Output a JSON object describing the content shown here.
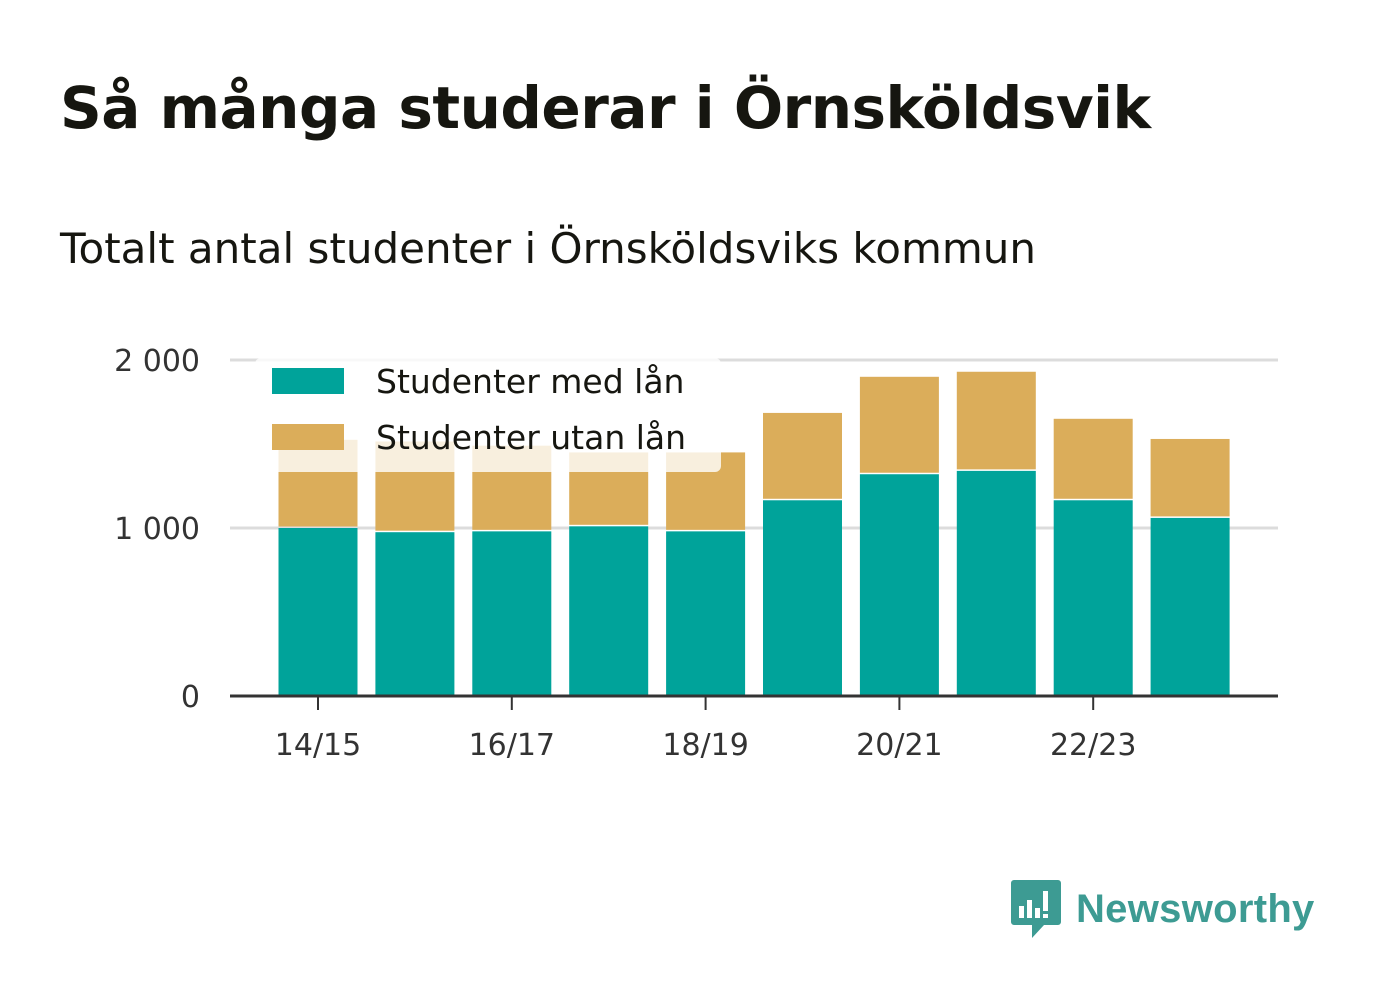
{
  "title": "Så många studerar i Örnsköldsvik",
  "subtitle": "Totalt antal studenter i Örnsköldsviks kommun",
  "brand": {
    "name": "Newsworthy",
    "color": "#3d9b93"
  },
  "chart_data": {
    "type": "bar",
    "stacked": true,
    "categories": [
      "14/15",
      "15/16",
      "16/17",
      "17/18",
      "18/19",
      "19/20",
      "20/21",
      "21/22",
      "22/23",
      "23/24"
    ],
    "x_tick_labels": [
      "14/15",
      "16/17",
      "18/19",
      "20/21",
      "22/23"
    ],
    "series": [
      {
        "name": "Studenter med lån",
        "color": "#00a39a",
        "values": [
          1000,
          975,
          980,
          1010,
          980,
          1165,
          1320,
          1340,
          1165,
          1060
        ]
      },
      {
        "name": "Studenter utan lån",
        "color": "#dbad5a",
        "values": [
          525,
          540,
          510,
          440,
          470,
          520,
          580,
          590,
          485,
          470
        ]
      }
    ],
    "y_ticks": [
      0,
      1000,
      2000
    ],
    "y_tick_labels": [
      "0",
      "1 000",
      "2 000"
    ],
    "ylim": [
      0,
      2000
    ],
    "grid": true,
    "legend_position": "top-left"
  }
}
